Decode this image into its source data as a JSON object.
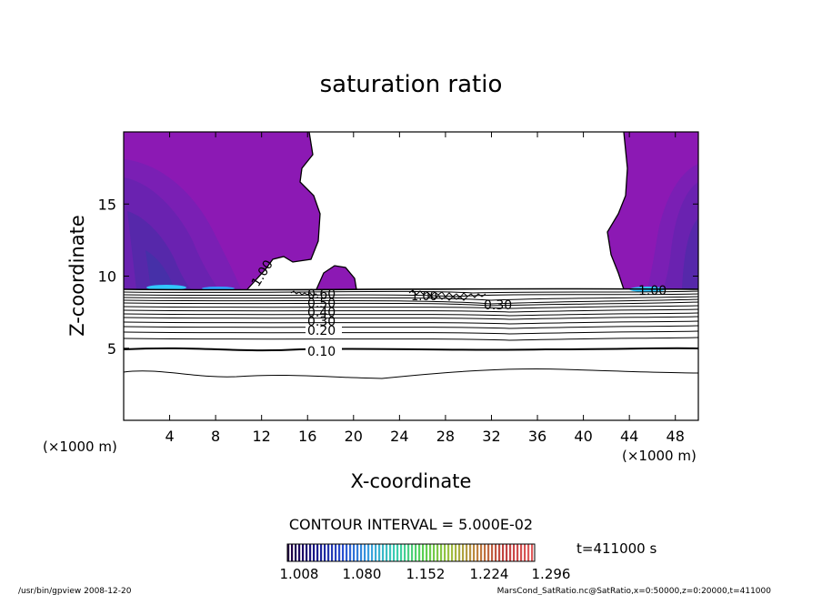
{
  "chart_data": {
    "type": "contour",
    "title": "saturation ratio",
    "xlabel": "X-coordinate",
    "ylabel": "Z-coordinate",
    "x_unit": "(×1000 m)",
    "x_unit_right": "(×1000 m)",
    "xlim": [
      0,
      50
    ],
    "ylim": [
      0,
      20
    ],
    "x_ticks": [
      4,
      8,
      12,
      16,
      20,
      24,
      28,
      32,
      36,
      40,
      44,
      48
    ],
    "y_ticks": [
      5,
      10,
      15
    ],
    "contour_interval_text": "CONTOUR INTERVAL = 5.000E-02",
    "contour_labels": [
      "0.10",
      "0.20",
      "0.30",
      "0.40",
      "0.50",
      "0.60",
      "1.00",
      "1.00",
      "1.00",
      "0.30"
    ],
    "colorbar": {
      "ticks": [
        "1.008",
        "1.080",
        "1.152",
        "1.224",
        "1.296"
      ],
      "colors": [
        "#200040",
        "#1a1a8a",
        "#2a4fd0",
        "#3aa0e0",
        "#3ad0b0",
        "#5ad050",
        "#a0c040",
        "#c08040",
        "#c04040",
        "#e05a5a"
      ]
    },
    "fill_colors": {
      "base": "#8c19b4",
      "mid": "#6a1fb0",
      "deep": "#4a2aa8",
      "edge_highlight": "#31c8ff"
    },
    "time_label": "t=411000 s"
  },
  "footer": {
    "left": "/usr/bin/gpview   2008-12-20",
    "right": "MarsCond_SatRatio.nc@SatRatio,x=0:50000,z=0:20000,t=411000"
  }
}
